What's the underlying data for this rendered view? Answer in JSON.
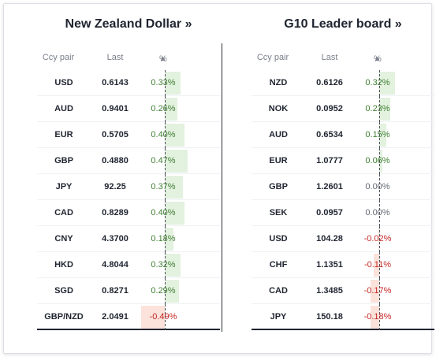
{
  "left_panel": {
    "title": "New Zealand Dollar »",
    "headers": {
      "pair": "Ccy pair",
      "last": "Last",
      "pct": "%",
      "sort_arrow": "▲"
    },
    "rows": [
      {
        "pair": "USD",
        "last": "0.6143",
        "pct": "0.33%",
        "value": 0.33
      },
      {
        "pair": "AUD",
        "last": "0.9401",
        "pct": "0.26%",
        "value": 0.26
      },
      {
        "pair": "EUR",
        "last": "0.5705",
        "pct": "0.40%",
        "value": 0.4
      },
      {
        "pair": "GBP",
        "last": "0.4880",
        "pct": "0.47%",
        "value": 0.47
      },
      {
        "pair": "JPY",
        "last": "92.25",
        "pct": "0.37%",
        "value": 0.37
      },
      {
        "pair": "CAD",
        "last": "0.8289",
        "pct": "0.40%",
        "value": 0.4
      },
      {
        "pair": "CNY",
        "last": "4.3700",
        "pct": "0.18%",
        "value": 0.18
      },
      {
        "pair": "HKD",
        "last": "4.8044",
        "pct": "0.32%",
        "value": 0.32
      },
      {
        "pair": "SGD",
        "last": "0.8271",
        "pct": "0.29%",
        "value": 0.29
      },
      {
        "pair": "GBP/NZD",
        "last": "2.0491",
        "pct": "-0.49%",
        "value": -0.49
      }
    ]
  },
  "right_panel": {
    "title": "G10 Leader board »",
    "headers": {
      "pair": "Ccy pair",
      "last": "Last",
      "pct": "%",
      "sort_arrow": "▲"
    },
    "rows": [
      {
        "pair": "NZD",
        "last": "0.6126",
        "pct": "0.32%",
        "value": 0.32
      },
      {
        "pair": "NOK",
        "last": "0.0952",
        "pct": "0.23%",
        "value": 0.23
      },
      {
        "pair": "AUD",
        "last": "0.6534",
        "pct": "0.15%",
        "value": 0.15
      },
      {
        "pair": "EUR",
        "last": "1.0777",
        "pct": "0.06%",
        "value": 0.06
      },
      {
        "pair": "GBP",
        "last": "1.2601",
        "pct": "0.00%",
        "value": 0.0
      },
      {
        "pair": "SEK",
        "last": "0.0957",
        "pct": "0.00%",
        "value": 0.0
      },
      {
        "pair": "USD",
        "last": "104.28",
        "pct": "-0.02%",
        "value": -0.02
      },
      {
        "pair": "CHF",
        "last": "1.1351",
        "pct": "-0.11%",
        "value": -0.11
      },
      {
        "pair": "CAD",
        "last": "1.3485",
        "pct": "-0.17%",
        "value": -0.17
      },
      {
        "pair": "JPY",
        "last": "150.18",
        "pct": "-0.18%",
        "value": -0.18
      }
    ]
  },
  "colors": {
    "positive": "#3f7f32",
    "negative": "#c62828",
    "positive_bar": "#e3f1df",
    "negative_bar": "#fbe2da"
  }
}
